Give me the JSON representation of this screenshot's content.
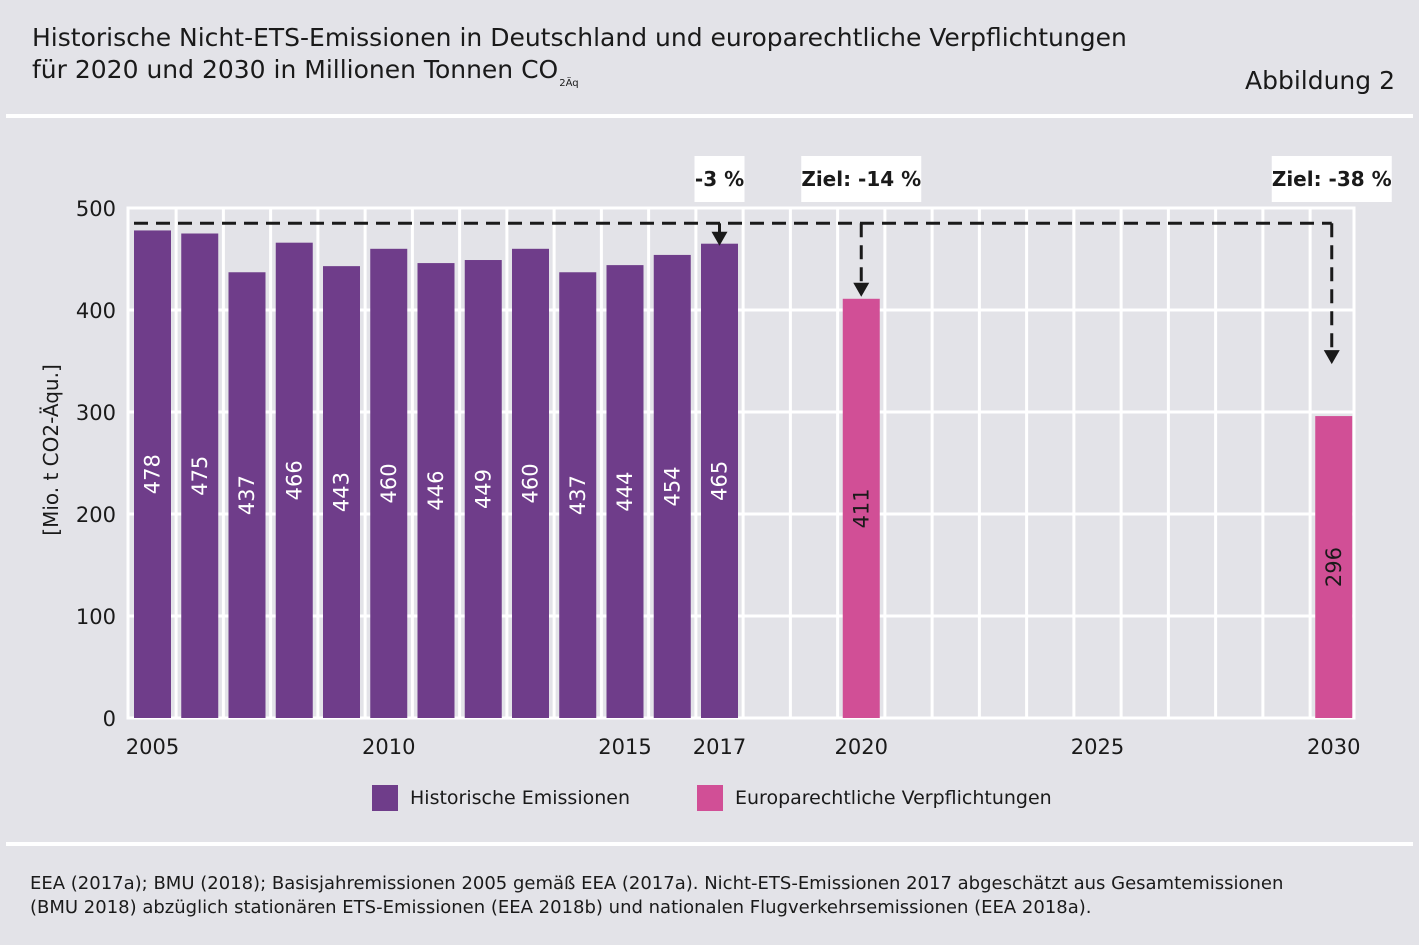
{
  "header": {
    "title_line1": "Historische Nicht-ETS-Emissionen in Deutschland und europarechtliche Verpflichtungen",
    "title_line2": "für 2020 und 2030 in Millionen Tonnen CO",
    "title_sub": "2Äq",
    "figure_label": "Abbildung 2"
  },
  "chart_data": {
    "type": "bar",
    "ylabel": "[Mio. t CO2-Äqu.]",
    "ylim": [
      0,
      500
    ],
    "yticks": [
      0,
      100,
      200,
      300,
      400,
      500
    ],
    "xlim": [
      2005,
      2030
    ],
    "xticks": [
      2005,
      2010,
      2015,
      2017,
      2020,
      2025,
      2030
    ],
    "grid": true,
    "series": [
      {
        "name": "Historische Emissionen",
        "color": "#6f3d8a",
        "x": [
          2005,
          2006,
          2007,
          2008,
          2009,
          2010,
          2011,
          2012,
          2013,
          2014,
          2015,
          2016,
          2017
        ],
        "values": [
          478,
          475,
          437,
          466,
          443,
          460,
          446,
          449,
          460,
          437,
          444,
          454,
          465
        ]
      },
      {
        "name": "Europarechtliche Verpflichtungen",
        "color": "#d14f96",
        "x": [
          2020,
          2030
        ],
        "values": [
          411,
          296
        ]
      }
    ],
    "annotations": [
      {
        "text": "-3 %",
        "x": 2017
      },
      {
        "text": "Ziel: -14 %",
        "x": 2020
      },
      {
        "text": "Ziel: -38 %",
        "x": 2030
      }
    ],
    "reference_line": {
      "style": "dashed",
      "value": 485
    },
    "legend_position": "bottom"
  },
  "footer": {
    "source_line1": "EEA (2017a); BMU (2018); Basisjahremissionen 2005 gemäß EEA (2017a). Nicht-ETS-Emissionen 2017 abgeschätzt aus Gesamtemissionen",
    "source_line2": "(BMU 2018) abzüglich stationären ETS-Emissionen (EEA 2018b) und nationalen Flugverkehrsemissionen (EEA 2018a)."
  }
}
